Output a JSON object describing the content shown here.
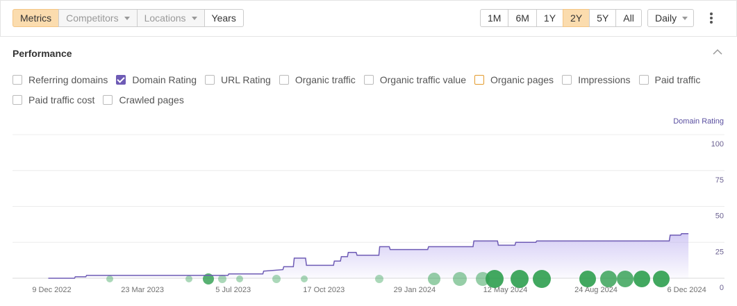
{
  "toolbar": {
    "tabs": [
      {
        "label": "Metrics",
        "selected": true
      },
      {
        "label": "Competitors",
        "dropdown": true,
        "disabled": true
      },
      {
        "label": "Locations",
        "dropdown": true,
        "disabled": true
      },
      {
        "label": "Years"
      }
    ],
    "ranges": [
      {
        "label": "1M"
      },
      {
        "label": "6M"
      },
      {
        "label": "1Y"
      },
      {
        "label": "2Y",
        "selected": true
      },
      {
        "label": "5Y"
      },
      {
        "label": "All"
      }
    ],
    "interval": "Daily"
  },
  "panel": {
    "title": "Performance",
    "checkboxes": [
      [
        {
          "label": "Referring domains"
        },
        {
          "label": "Domain Rating",
          "checked": true,
          "color": "#6e5bb5"
        },
        {
          "label": "URL Rating"
        },
        {
          "label": "Organic traffic"
        },
        {
          "label": "Organic traffic value"
        },
        {
          "label": "Organic pages",
          "color": "#e39a2c"
        },
        {
          "label": "Impressions"
        },
        {
          "label": "Paid traffic"
        }
      ],
      [
        {
          "label": "Paid traffic cost"
        },
        {
          "label": "Crawled pages"
        }
      ]
    ]
  },
  "chart_data": {
    "type": "line",
    "y_label": "Domain Rating",
    "xlim": [
      "25 Oct 2022",
      "27 Dec 2024"
    ],
    "xticks": [
      "9 Dec 2022",
      "23 Mar 2023",
      "5 Jul 2023",
      "17 Oct 2023",
      "29 Jan 2024",
      "12 May 2024",
      "24 Aug 2024",
      "6 Dec 2024"
    ],
    "ylim": [
      0,
      100
    ],
    "yticks": [
      0,
      25,
      50,
      75,
      100
    ],
    "grid": true,
    "series": [
      {
        "name": "Domain Rating",
        "color": "#6e5bb5",
        "x": [
          "5 Dec 2022",
          "4 Jan 2023",
          "5 Jan 2023",
          "17 Jan 2023",
          "18 Jan 2023",
          "29 Jun 2023",
          "30 Jun 2023",
          "8 Aug 2023",
          "9 Aug 2023",
          "31 Aug 2023",
          "1 Sep 2023",
          "12 Sep 2023",
          "13 Sep 2023",
          "26 Sep 2023",
          "27 Sep 2023",
          "28 Oct 2023",
          "29 Oct 2023",
          "5 Nov 2023",
          "6 Nov 2023",
          "13 Nov 2023",
          "14 Nov 2023",
          "23 Nov 2023",
          "24 Nov 2023",
          "19 Dec 2023",
          "20 Dec 2023",
          "31 Dec 2023",
          "1 Jan 2024",
          "13 Feb 2024",
          "14 Feb 2024",
          "5 Apr 2024",
          "6 Apr 2024",
          "3 May 2024",
          "4 May 2024",
          "23 May 2024",
          "24 May 2024",
          "16 Jun 2024",
          "17 Jun 2024",
          "16 Nov 2024",
          "17 Nov 2024",
          "29 Nov 2024",
          "30 Nov 2024",
          "8 Dec 2024"
        ],
        "values": [
          0,
          0,
          1,
          1,
          2,
          2,
          3,
          3,
          5,
          6,
          8,
          8,
          14,
          14,
          9,
          9,
          12,
          12,
          15,
          15,
          18,
          18,
          16,
          16,
          22,
          22,
          20,
          20,
          22,
          22,
          26,
          26,
          23,
          23,
          25,
          25,
          26,
          26,
          30,
          30,
          31,
          31
        ]
      }
    ]
  }
}
